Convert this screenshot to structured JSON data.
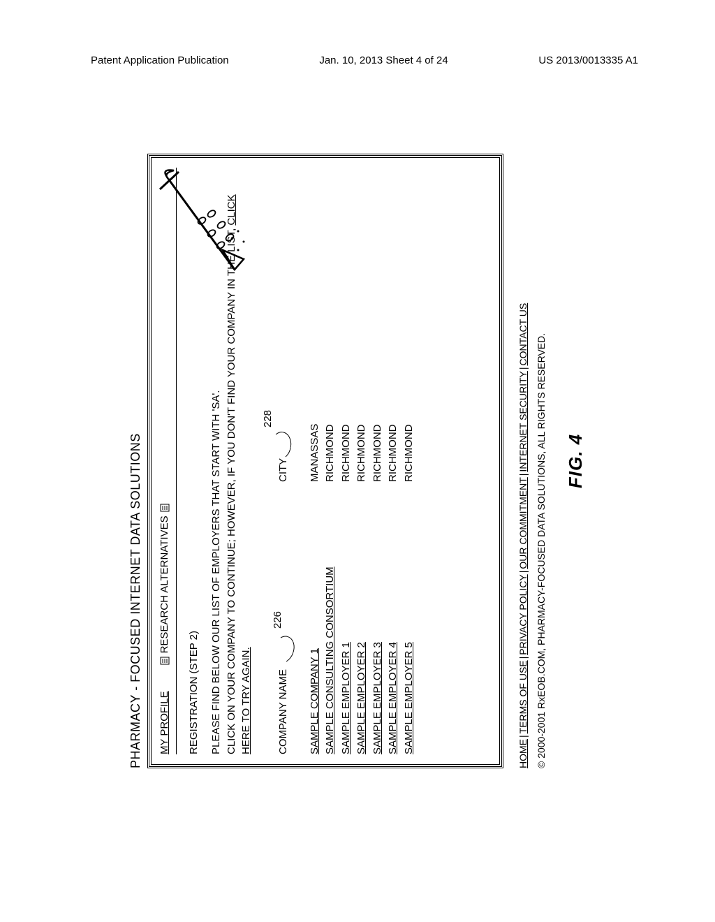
{
  "page_header": {
    "left": "Patent Application Publication",
    "center": "Jan. 10, 2013  Sheet 4 of 24",
    "right": "US 2013/0013335 A1"
  },
  "app": {
    "title": "PHARMACY - FOCUSED INTERNET DATA SOLUTIONS",
    "nav": {
      "my_profile": "MY PROFILE",
      "research_alt": "RESEARCH ALTERNATIVES"
    },
    "section_title": "REGISTRATION (STEP 2)",
    "instruction1": "PLEASE FIND BELOW OUR LIST OF EMPLOYERS THAT START WITH 'SA'.",
    "instruction2_pre": "CLICK ON YOUR COMPANY TO CONTINUE; HOWEVER, IF YOU DON'T FIND YOUR COMPANY IN THE LIST, ",
    "instruction2_link": "CLICK HERE TO TRY AGAIN.",
    "columns": {
      "company": "COMPANY NAME",
      "city": "CITY"
    },
    "callouts": {
      "company": "226",
      "city": "228"
    },
    "rows": [
      {
        "company": "SAMPLE COMPANY 1",
        "city": "MANASSAS"
      },
      {
        "company": "SAMPLE CONSULTING CONSORTIUM",
        "city": "RICHMOND"
      },
      {
        "company": "SAMPLE EMPLOYER 1",
        "city": "RICHMOND"
      },
      {
        "company": "SAMPLE EMPLOYER 2",
        "city": "RICHMOND"
      },
      {
        "company": "SAMPLE EMPLOYER 3",
        "city": "RICHMOND"
      },
      {
        "company": "SAMPLE EMPLOYER 4",
        "city": "RICHMOND"
      },
      {
        "company": "SAMPLE EMPLOYER 5",
        "city": "RICHMOND"
      }
    ]
  },
  "footer": {
    "links": [
      "HOME",
      "TERMS OF USE",
      "PRIVACY POLICY",
      "OUR COMMITMENT",
      "INTERNET SECURITY",
      "CONTACT US"
    ],
    "copyright": "© 2000-2001 RxEOB.COM, PHARMACY-FOCUSED DATA SOLUTIONS, ALL RIGHTS RESERVED."
  },
  "figure_label": "FIG. 4"
}
